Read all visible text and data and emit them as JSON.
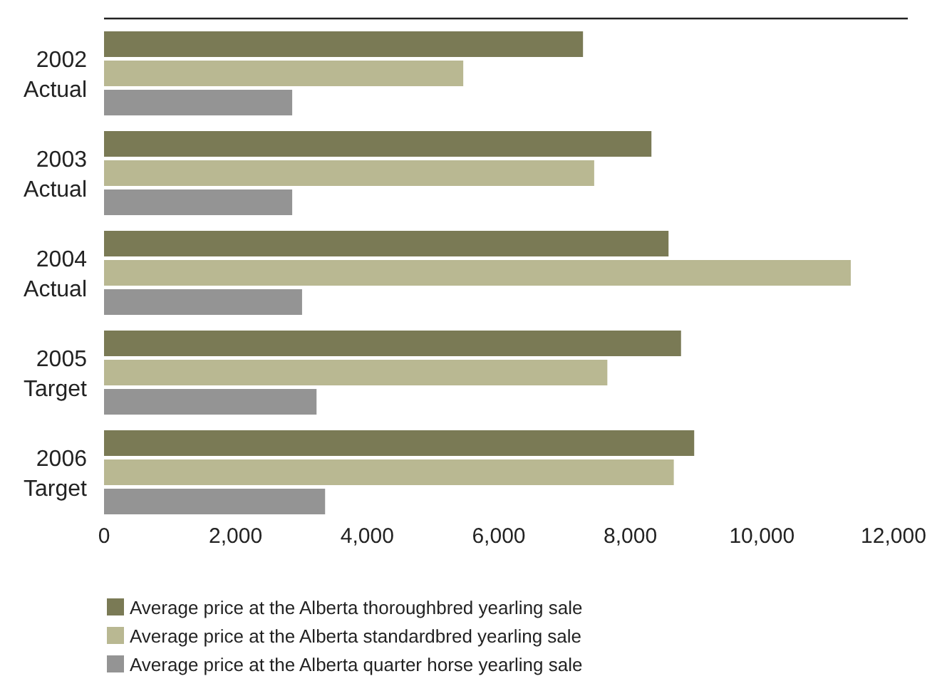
{
  "chart_data": {
    "type": "bar",
    "orientation": "horizontal",
    "categories": [
      "2002\nActual",
      "2003\nActual",
      "2004\nActual",
      "2005\nTarget",
      "2006\nTarget"
    ],
    "series": [
      {
        "name": "Average price at the Alberta thoroughbred yearling sale",
        "color": "#7a7a55",
        "values": [
          7280,
          8320,
          8580,
          8770,
          8970
        ]
      },
      {
        "name": "Average price at the Alberta standardbred yearling sale",
        "color": "#b9b892",
        "values": [
          5460,
          7450,
          11350,
          7650,
          8660
        ]
      },
      {
        "name": "Average price at the Alberta quarter horse yearling sale",
        "color": "#949494",
        "values": [
          2860,
          2860,
          3010,
          3230,
          3360
        ]
      }
    ],
    "xlim": [
      0,
      12000
    ],
    "xticks": [
      0,
      {
        "value": 2000,
        "label": "2,000"
      },
      {
        "value": 4000,
        "label": "4,000"
      },
      {
        "value": 6000,
        "label": "6,000"
      },
      {
        "value": 8000,
        "label": "8,000"
      },
      {
        "value": 10000,
        "label": "10,000"
      },
      {
        "value": 12000,
        "label": "12,000"
      }
    ],
    "grid": false,
    "legend": "bottom"
  }
}
